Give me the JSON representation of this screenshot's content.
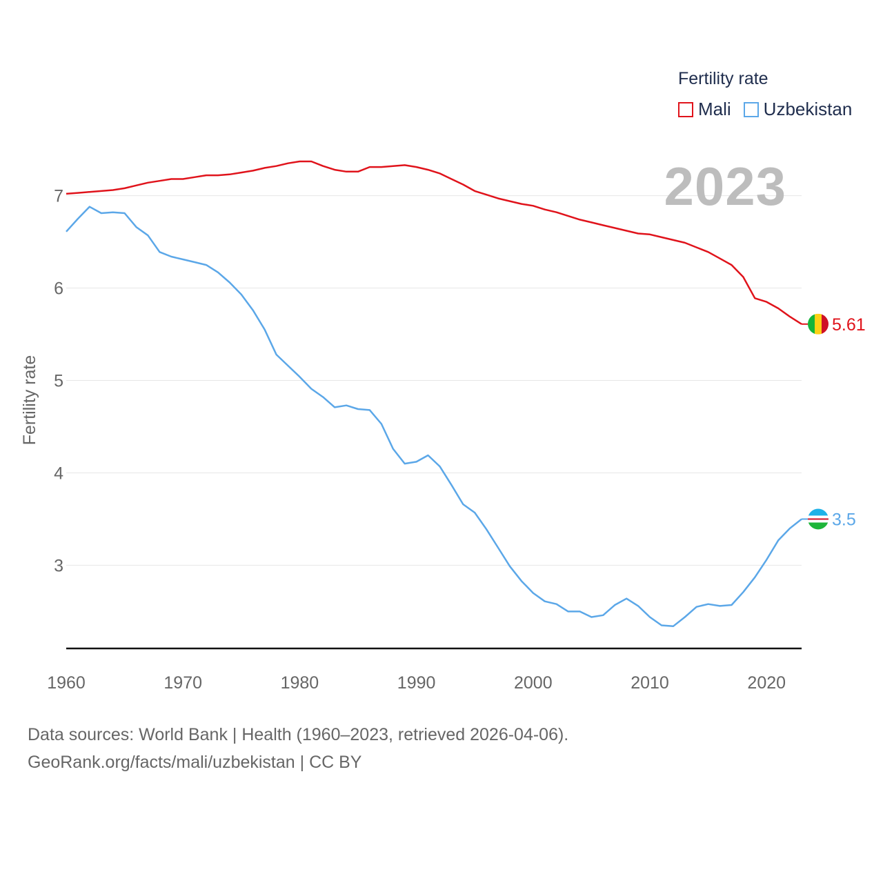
{
  "legend": {
    "title": "Fertility rate",
    "items": [
      {
        "label": "Mali",
        "color": "#e0131b"
      },
      {
        "label": "Uzbekistan",
        "color": "#5ba7e8"
      }
    ]
  },
  "year_label": "2023",
  "footer": {
    "line1": "Data sources: World Bank | Health (1960–2023, retrieved 2026-04-06).",
    "line2": "GeoRank.org/facts/mali/uzbekistan | CC BY"
  },
  "chart_data": {
    "type": "line",
    "title": "",
    "xlabel": "",
    "ylabel": "Fertility rate",
    "xlim": [
      1960,
      2023
    ],
    "ylim": [
      2.1,
      7.4
    ],
    "xticks": [
      "1960",
      "1970",
      "1980",
      "1990",
      "2000",
      "2010",
      "2020"
    ],
    "yticks": [
      "3",
      "4",
      "5",
      "6",
      "7"
    ],
    "x": [
      1960,
      1961,
      1962,
      1963,
      1964,
      1965,
      1966,
      1967,
      1968,
      1969,
      1970,
      1971,
      1972,
      1973,
      1974,
      1975,
      1976,
      1977,
      1978,
      1979,
      1980,
      1981,
      1982,
      1983,
      1984,
      1985,
      1986,
      1987,
      1988,
      1989,
      1990,
      1991,
      1992,
      1993,
      1994,
      1995,
      1996,
      1997,
      1998,
      1999,
      2000,
      2001,
      2002,
      2003,
      2004,
      2005,
      2006,
      2007,
      2008,
      2009,
      2010,
      2011,
      2012,
      2013,
      2014,
      2015,
      2016,
      2017,
      2018,
      2019,
      2020,
      2021,
      2022,
      2023
    ],
    "series": [
      {
        "name": "Mali",
        "color": "#e0131b",
        "end_label": "5.61",
        "values": [
          7.02,
          7.03,
          7.04,
          7.05,
          7.06,
          7.08,
          7.11,
          7.14,
          7.16,
          7.18,
          7.18,
          7.2,
          7.22,
          7.22,
          7.23,
          7.25,
          7.27,
          7.3,
          7.32,
          7.35,
          7.37,
          7.37,
          7.32,
          7.28,
          7.26,
          7.26,
          7.31,
          7.31,
          7.32,
          7.33,
          7.31,
          7.28,
          7.24,
          7.18,
          7.12,
          7.05,
          7.01,
          6.97,
          6.94,
          6.91,
          6.89,
          6.85,
          6.82,
          6.78,
          6.74,
          6.71,
          6.68,
          6.65,
          6.62,
          6.59,
          6.58,
          6.55,
          6.52,
          6.49,
          6.44,
          6.39,
          6.32,
          6.25,
          6.12,
          5.89,
          5.85,
          5.78,
          5.69,
          5.61
        ]
      },
      {
        "name": "Uzbekistan",
        "color": "#5ba7e8",
        "end_label": "3.5",
        "values": [
          6.61,
          6.75,
          6.88,
          6.81,
          6.82,
          6.81,
          6.66,
          6.57,
          6.39,
          6.34,
          6.31,
          6.28,
          6.25,
          6.17,
          6.06,
          5.93,
          5.76,
          5.55,
          5.28,
          5.16,
          5.04,
          4.91,
          4.82,
          4.71,
          4.73,
          4.69,
          4.68,
          4.53,
          4.26,
          4.1,
          4.12,
          4.19,
          4.07,
          3.87,
          3.66,
          3.57,
          3.39,
          3.19,
          2.99,
          2.83,
          2.7,
          2.61,
          2.58,
          2.5,
          2.5,
          2.44,
          2.46,
          2.57,
          2.64,
          2.56,
          2.44,
          2.35,
          2.34,
          2.44,
          2.55,
          2.58,
          2.56,
          2.57,
          2.71,
          2.87,
          3.06,
          3.27,
          3.4,
          3.5
        ]
      }
    ]
  }
}
